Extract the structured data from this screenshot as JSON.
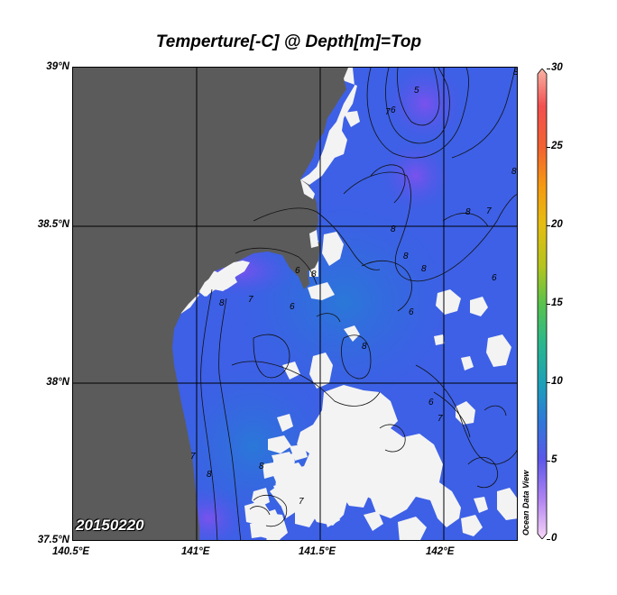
{
  "title": "Temperture[-C] @ Depth[m]=Top",
  "date_label": "20150220",
  "watermark": "Ocean Data View",
  "axes": {
    "lat_labels": [
      "39°N",
      "38.5°N",
      "38°N",
      "37.5°N"
    ],
    "lon_labels": [
      "140.5°E",
      "141°E",
      "141.5°E",
      "142°E"
    ]
  },
  "colorbar": {
    "ticks": [
      "30",
      "25",
      "20",
      "15",
      "10",
      "5",
      "0"
    ],
    "range": [
      0,
      30
    ]
  },
  "contour_labels": [
    "8",
    "7",
    "6",
    "5",
    "8",
    "7",
    "8",
    "6",
    "8",
    "8",
    "8",
    "6",
    "8",
    "8",
    "7",
    "6",
    "8",
    "6",
    "8",
    "7",
    "8",
    "7",
    "6",
    "7"
  ],
  "colors": {
    "land": "#5b5b5b",
    "no_data": "#f2f2f2",
    "water_base": "#3a5ee8"
  }
}
